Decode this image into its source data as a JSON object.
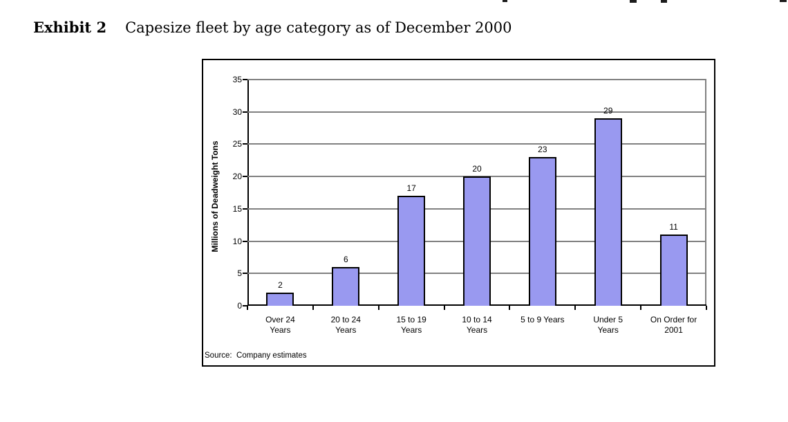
{
  "heading": {
    "label": "Exhibit 2",
    "title": "Capesize fleet by age category as of December 2000"
  },
  "chart_data": {
    "type": "bar",
    "categories": [
      "Over 24\nYears",
      "20 to 24\nYears",
      "15 to 19\nYears",
      "10 to 14\nYears",
      "5 to 9 Years",
      "Under 5\nYears",
      "On Order for\n2001"
    ],
    "values": [
      2,
      6,
      17,
      20,
      23,
      29,
      11
    ],
    "title": "",
    "xlabel": "",
    "ylabel": "Millions of Deadweight Tons",
    "ylim": [
      0,
      35
    ],
    "yticks": [
      0,
      5,
      10,
      15,
      20,
      25,
      30,
      35
    ],
    "grid": true,
    "legend": false,
    "bar_color": "#9999F0",
    "bar_border_color": "#000000",
    "gridline_color": "#808080",
    "axis_color": "#000000",
    "source_note": "Source:  Company estimates"
  }
}
